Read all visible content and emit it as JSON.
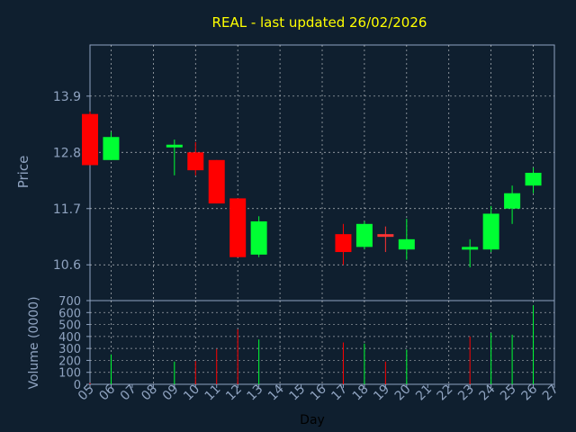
{
  "chart_data": [
    {
      "type": "candlestick",
      "title": "REAL - last updated 26/02/2026",
      "ylabel": "Price",
      "xlabel": "",
      "ylim": [
        9.9,
        14.9
      ],
      "yticks": [
        10.6,
        11.7,
        12.8,
        13.9
      ],
      "grid": true,
      "colors": {
        "up": "#00ff33",
        "down": "#ff0000",
        "doji": "#ff3333",
        "title": "#ffff00",
        "grid": "#ffffff",
        "axis": "#8fa3c0"
      },
      "candles": [
        {
          "day": 5,
          "open": 13.55,
          "high": 13.6,
          "low": 12.55,
          "close": 12.55
        },
        {
          "day": 6,
          "open": 12.65,
          "high": 13.2,
          "low": 12.65,
          "close": 13.1
        },
        {
          "day": 9,
          "open": 12.9,
          "high": 13.05,
          "low": 12.35,
          "close": 12.95
        },
        {
          "day": 10,
          "open": 12.8,
          "high": 13.0,
          "low": 12.35,
          "close": 12.45
        },
        {
          "day": 11,
          "open": 12.65,
          "high": 12.65,
          "low": 11.8,
          "close": 11.8
        },
        {
          "day": 12,
          "open": 11.9,
          "high": 11.9,
          "low": 10.75,
          "close": 10.75
        },
        {
          "day": 13,
          "open": 10.8,
          "high": 11.55,
          "low": 10.75,
          "close": 11.45
        },
        {
          "day": 17,
          "open": 11.2,
          "high": 11.4,
          "low": 10.6,
          "close": 10.85
        },
        {
          "day": 18,
          "open": 10.95,
          "high": 11.45,
          "low": 10.9,
          "close": 11.4
        },
        {
          "day": 19,
          "open": 11.2,
          "high": 11.35,
          "low": 10.85,
          "close": 11.15
        },
        {
          "day": 20,
          "open": 10.9,
          "high": 11.5,
          "low": 10.7,
          "close": 11.1
        },
        {
          "day": 23,
          "open": 10.95,
          "high": 11.1,
          "low": 10.55,
          "close": 10.95
        },
        {
          "day": 24,
          "open": 10.9,
          "high": 11.75,
          "low": 10.85,
          "close": 11.6
        },
        {
          "day": 25,
          "open": 11.7,
          "high": 12.15,
          "low": 11.4,
          "close": 12.0
        },
        {
          "day": 26,
          "open": 12.15,
          "high": 12.5,
          "low": 12.0,
          "close": 12.4
        }
      ]
    },
    {
      "type": "bar",
      "ylabel": "Volume (0000)",
      "xlabel": "Day",
      "ylim": [
        0,
        700
      ],
      "yticks": [
        0,
        100,
        200,
        300,
        400,
        500,
        600,
        700
      ],
      "xticks": [
        "05",
        "06",
        "07",
        "08",
        "09",
        "10",
        "11",
        "12",
        "13",
        "14",
        "15",
        "16",
        "17",
        "18",
        "19",
        "20",
        "21",
        "22",
        "23",
        "24",
        "25",
        "26",
        "27"
      ],
      "volumes": [
        {
          "day": 5,
          "value": 10,
          "dir": "down"
        },
        {
          "day": 6,
          "value": 250,
          "dir": "up"
        },
        {
          "day": 9,
          "value": 190,
          "dir": "up"
        },
        {
          "day": 10,
          "value": 195,
          "dir": "down"
        },
        {
          "day": 11,
          "value": 295,
          "dir": "down"
        },
        {
          "day": 12,
          "value": 460,
          "dir": "down"
        },
        {
          "day": 13,
          "value": 375,
          "dir": "up"
        },
        {
          "day": 17,
          "value": 350,
          "dir": "down"
        },
        {
          "day": 18,
          "value": 340,
          "dir": "up"
        },
        {
          "day": 19,
          "value": 190,
          "dir": "down"
        },
        {
          "day": 20,
          "value": 290,
          "dir": "up"
        },
        {
          "day": 23,
          "value": 400,
          "dir": "down"
        },
        {
          "day": 24,
          "value": 430,
          "dir": "up"
        },
        {
          "day": 25,
          "value": 415,
          "dir": "up"
        },
        {
          "day": 26,
          "value": 660,
          "dir": "up"
        }
      ]
    }
  ]
}
